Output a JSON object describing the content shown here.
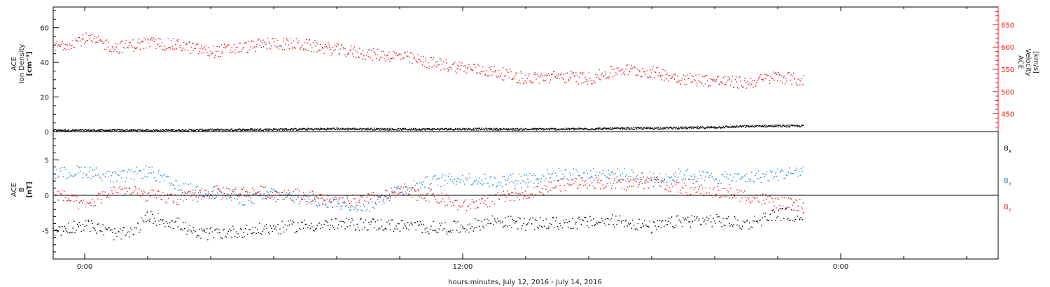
{
  "figure": {
    "xlabel": "hours:minutes, July 12, 2016 - July 14, 2016",
    "x_ticks": [
      "0:00",
      "12:00",
      "0:00"
    ]
  },
  "colors": {
    "black": "#000000",
    "red": "#e31a1c",
    "blue": "#1f7fd0"
  },
  "chart_data": [
    {
      "type": "scatter",
      "panel": "top",
      "ylabel": [
        "ACE",
        "Ion Density",
        "[cm⁻³]"
      ],
      "ylabel_right": [
        "ACE",
        "Velocity",
        "[km/s]"
      ],
      "ylim": [
        0,
        72
      ],
      "y_ticks": [
        "0",
        "20",
        "40",
        "60"
      ],
      "y2lim": [
        410,
        690
      ],
      "y2_ticks": [
        "450",
        "500",
        "550",
        "600",
        "650"
      ],
      "x_units": "hours from July 12, 2016 0:00",
      "xlim": [
        -1,
        29
      ],
      "series": [
        {
          "axis": "left",
          "color": "black",
          "x": [
            -1,
            2,
            4,
            6,
            8,
            10,
            12,
            14,
            16,
            18,
            19.5,
            20.5,
            21.5,
            22.8
          ],
          "y": [
            1,
            1,
            1.2,
            1.5,
            1.8,
            1.6,
            1.7,
            1.6,
            1.8,
            2.2,
            2.5,
            3,
            3.5,
            3.5
          ]
        },
        {
          "axis": "right",
          "color": "red",
          "x": [
            -1,
            0,
            1,
            2,
            3,
            4,
            5,
            6,
            7,
            8,
            9,
            10,
            11,
            12,
            13,
            14,
            15,
            16,
            17,
            18,
            19,
            20,
            21,
            22,
            22.8
          ],
          "y": [
            600,
            620,
            600,
            610,
            605,
            590,
            600,
            610,
            605,
            595,
            585,
            580,
            565,
            555,
            545,
            530,
            535,
            530,
            550,
            545,
            530,
            525,
            520,
            535,
            525
          ]
        }
      ]
    },
    {
      "type": "scatter",
      "panel": "bottom",
      "ylabel": [
        "ACE",
        "B",
        "[nT]"
      ],
      "ylim": [
        -9,
        9
      ],
      "y_ticks": [
        "-5",
        "0",
        "5"
      ],
      "x_units": "hours from July 12, 2016 0:00",
      "xlim": [
        -1,
        29
      ],
      "legend": [
        "Bx",
        "By",
        "Bz"
      ],
      "series": [
        {
          "name": "Bx",
          "color": "black",
          "x": [
            -1,
            0,
            1,
            1.5,
            2,
            3,
            3.5,
            5,
            7,
            9,
            11,
            12,
            13,
            14,
            16,
            17,
            18,
            19,
            20,
            21,
            22,
            22.8
          ],
          "y": [
            -5,
            -4,
            -5.5,
            -5.3,
            -3,
            -4,
            -5.5,
            -5,
            -4.2,
            -4,
            -4.5,
            -4.5,
            -3.5,
            -4,
            -3.8,
            -3.5,
            -4.5,
            -3.5,
            -3.5,
            -4,
            -2.5,
            -3
          ]
        },
        {
          "name": "By",
          "color": "blue",
          "x": [
            -1,
            0,
            1,
            2,
            3,
            4,
            5,
            6,
            7,
            8,
            9,
            10,
            11,
            12,
            13,
            14,
            15,
            16,
            17,
            18,
            19,
            20,
            21,
            22,
            22.8
          ],
          "y": [
            3,
            3.5,
            2.5,
            3.5,
            1,
            0.5,
            -0.5,
            0,
            -0.5,
            -1,
            -1.5,
            1,
            2,
            2.5,
            2,
            2.5,
            3,
            3,
            3,
            2.5,
            3,
            2.5,
            2.5,
            3,
            3.5
          ]
        },
        {
          "name": "Bz",
          "color": "red",
          "x": [
            -1,
            0,
            1,
            2,
            3,
            4,
            5,
            6,
            7,
            8,
            9,
            10,
            11,
            12,
            13,
            14,
            15,
            16,
            17,
            18,
            19,
            20,
            21,
            22,
            22.8
          ],
          "y": [
            0.5,
            -1.5,
            1,
            0,
            -0.5,
            0.5,
            0.5,
            0.5,
            0,
            -1,
            -0.5,
            0.5,
            0,
            -1.5,
            -0.5,
            0.5,
            1.5,
            2,
            1.5,
            2,
            1,
            0.5,
            0,
            -1,
            -1.5
          ]
        }
      ]
    }
  ]
}
